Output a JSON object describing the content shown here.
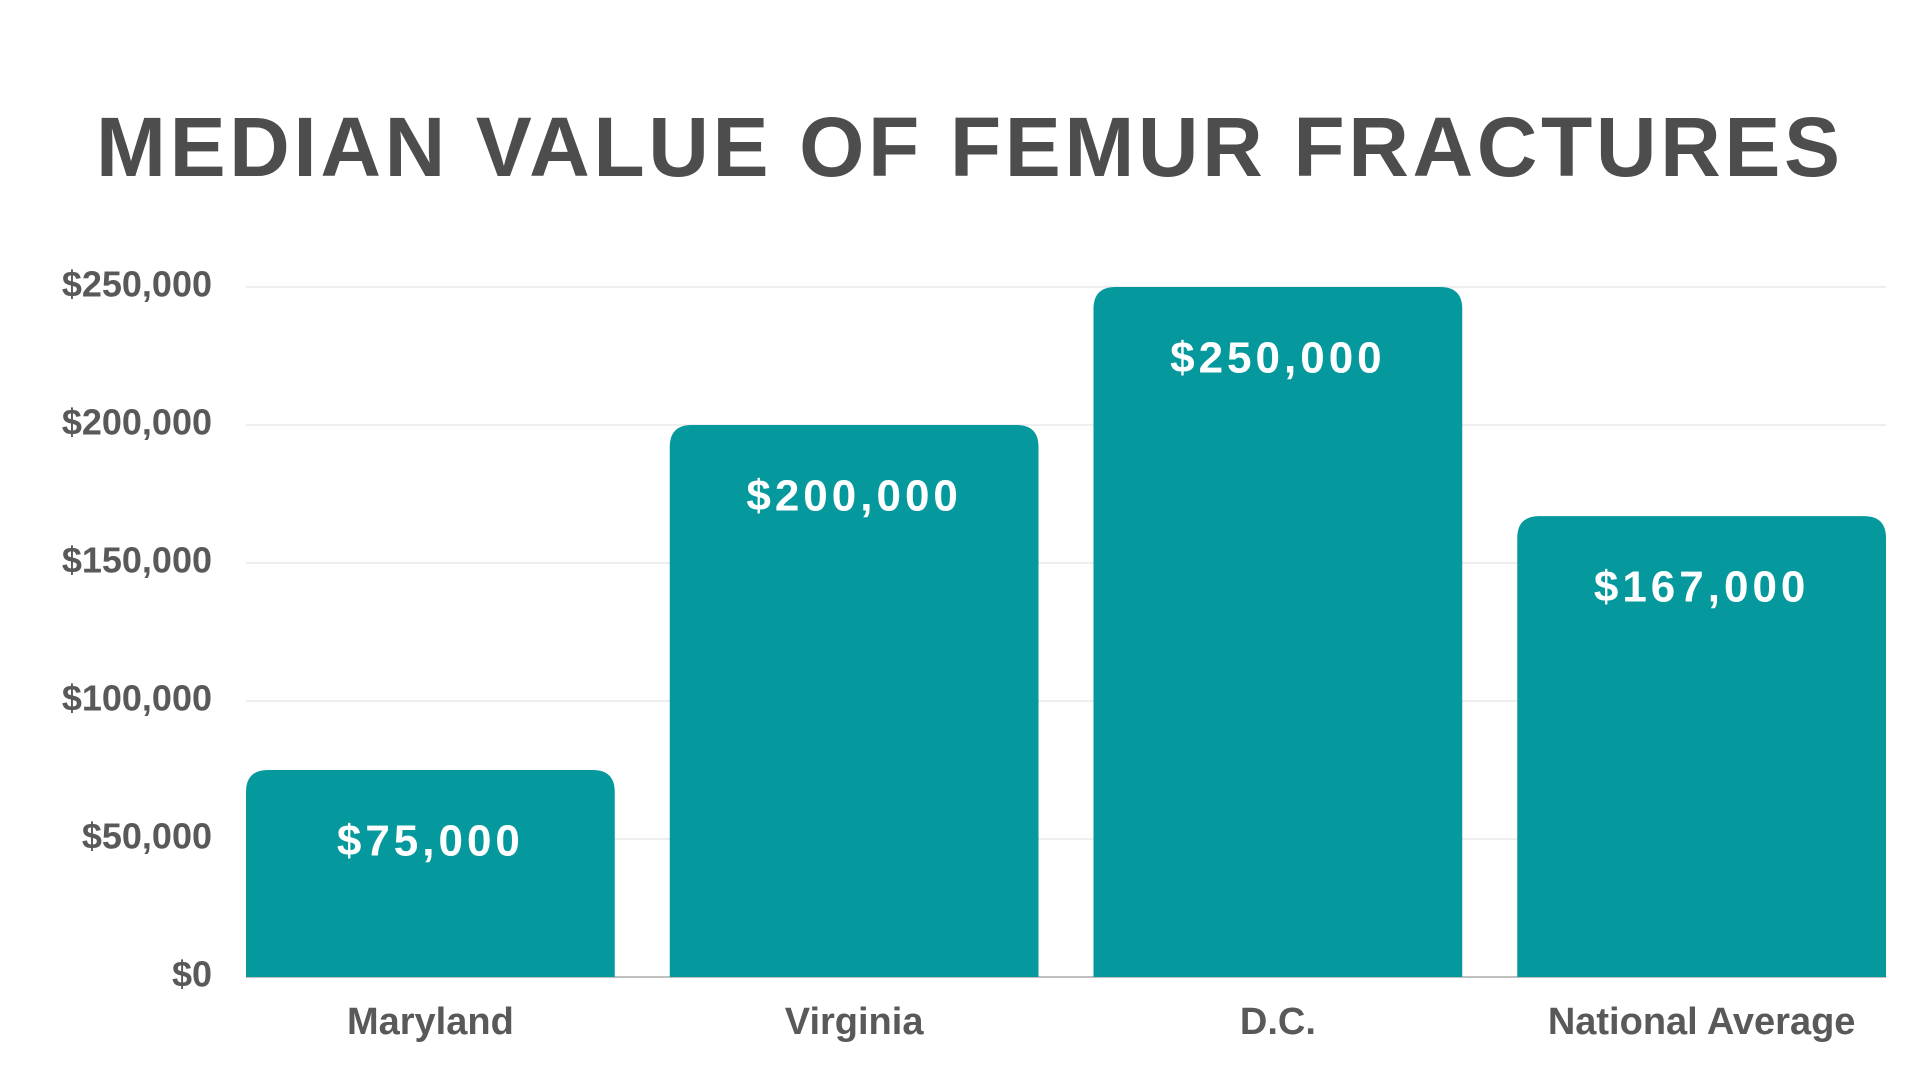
{
  "chart_data": {
    "type": "bar",
    "title": "MEDIAN VALUE OF FEMUR FRACTURES",
    "categories": [
      "Maryland",
      "Virginia",
      "D.C.",
      "National Average"
    ],
    "values": [
      75000,
      200000,
      250000,
      167000
    ],
    "value_labels": [
      "$75,000",
      "$200,000",
      "$250,000",
      "$167,000"
    ],
    "color": "#05999e",
    "ylim": [
      0,
      250000
    ],
    "yticks": [
      {
        "value": 0,
        "label": "$0"
      },
      {
        "value": 50000,
        "label": "$50,000"
      },
      {
        "value": 100000,
        "label": "$100,000"
      },
      {
        "value": 150000,
        "label": "$150,000"
      },
      {
        "value": 200000,
        "label": "$200,000"
      },
      {
        "value": 250000,
        "label": "$250,000"
      }
    ],
    "grid": true
  }
}
